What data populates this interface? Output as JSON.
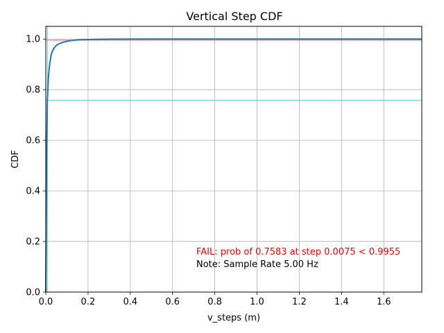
{
  "chart_data": {
    "type": "line",
    "title": "Vertical Step CDF",
    "xlabel": "v_steps (m)",
    "ylabel": "CDF",
    "xlim": [
      0,
      1.78
    ],
    "ylim": [
      0,
      1.05
    ],
    "xticks": [
      0.0,
      0.2,
      0.4,
      0.6,
      0.8,
      1.0,
      1.2,
      1.4,
      1.6
    ],
    "xtick_labels": [
      "0.0",
      "0.2",
      "0.4",
      "0.6",
      "0.8",
      "1.0",
      "1.2",
      "1.4",
      "1.6"
    ],
    "yticks": [
      0.0,
      0.2,
      0.4,
      0.6,
      0.8,
      1.0
    ],
    "ytick_labels": [
      "0.0",
      "0.2",
      "0.4",
      "0.6",
      "0.8",
      "1.0"
    ],
    "grid": true,
    "series": [
      {
        "color": "#1f77b4",
        "x": [
          0.0,
          0.004,
          0.0075,
          0.01,
          0.012,
          0.015,
          0.02,
          0.025,
          0.03,
          0.04,
          0.05,
          0.06,
          0.08,
          0.1,
          0.13,
          0.16,
          0.2,
          0.25,
          0.3,
          0.5,
          1.0,
          1.5,
          1.78
        ],
        "y": [
          0.0,
          0.55,
          0.7583,
          0.8,
          0.84,
          0.875,
          0.91,
          0.935,
          0.95,
          0.965,
          0.975,
          0.98,
          0.987,
          0.991,
          0.995,
          0.997,
          0.998,
          0.999,
          0.9995,
          1.0,
          1.0,
          1.0,
          1.0
        ]
      }
    ],
    "reference_lines": [
      {
        "y": 0.9955,
        "color": "#ff5a5a",
        "orientation": "horizontal"
      },
      {
        "y": 0.7583,
        "color": "#5fc9d6",
        "orientation": "horizontal"
      },
      {
        "x": 0.0075,
        "color": "#5fc9d6",
        "orientation": "vertical"
      }
    ],
    "annotations": [
      {
        "text": "FAIL: prob of 0.7583 at step 0.0075 < 0.9955",
        "color": "#ff0000"
      },
      {
        "text": "Note: Sample Rate 5.00 Hz",
        "color": "#000000"
      }
    ]
  }
}
